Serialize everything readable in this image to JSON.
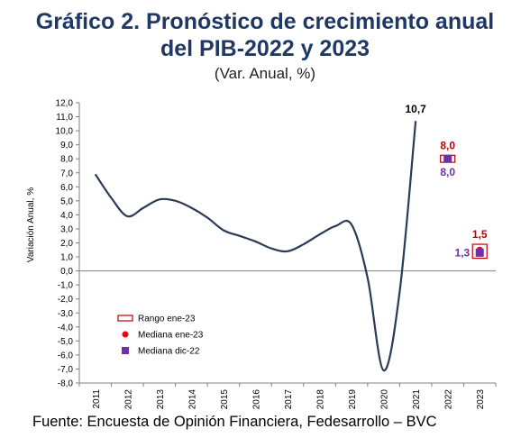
{
  "header": {
    "title_line1": "Gráfico 2. Pronóstico de crecimiento anual",
    "title_line2": "del PIB-2022 y 2023",
    "subtitle": "(Var. Anual, %)"
  },
  "footer": {
    "source": "Fuente: Encuesta de Opinión Financiera, Fedesarrollo – BVC"
  },
  "colors": {
    "line": "#2b3a56",
    "range": "#c00000",
    "median_ene23": "#e30613",
    "median_dic22": "#7030a0",
    "label_red": "#c00000",
    "label_purple": "#7030a0",
    "label_dark": "#000000"
  },
  "chart_data": {
    "type": "line",
    "ylabel": "Variación Anual, %",
    "ylim": [
      -8,
      12
    ],
    "yticks": [
      "12,0",
      "11,0",
      "10,0",
      "9,0",
      "8,0",
      "7,0",
      "6,0",
      "5,0",
      "4,0",
      "3,0",
      "2,0",
      "1,0",
      "0,0",
      "-1,0",
      "-2,0",
      "-3,0",
      "-4,0",
      "-5,0",
      "-6,0",
      "-7,0",
      "-8,0"
    ],
    "categories": [
      "2011",
      "2012",
      "2013",
      "2014",
      "2015",
      "2016",
      "2017",
      "2018",
      "2019",
      "2020",
      "2021",
      "2022",
      "2023"
    ],
    "series": [
      {
        "x": [
          2011,
          2011.5,
          2012,
          2012.5,
          2013,
          2013.5,
          2014,
          2014.5,
          2015,
          2015.5,
          2016,
          2016.5,
          2017,
          2017.5,
          2018,
          2018.5,
          2019,
          2019.5,
          2020,
          2020.5,
          2021
        ],
        "values": [
          6.9,
          5.2,
          3.9,
          4.5,
          5.1,
          5.0,
          4.5,
          3.8,
          2.9,
          2.5,
          2.1,
          1.6,
          1.4,
          1.9,
          2.6,
          3.2,
          3.3,
          -0.5,
          -7.1,
          -1.5,
          10.7
        ]
      }
    ],
    "forecasts": [
      {
        "year": "2022",
        "range_low": 7.75,
        "range_high": 8.25,
        "median_ene23": 8.0,
        "median_dic22": 8.0,
        "label_top": "8,0",
        "label_bottom": "8,0"
      },
      {
        "year": "2023",
        "range_low": 0.9,
        "range_high": 1.9,
        "median_ene23": 1.5,
        "median_dic22": 1.3,
        "label_top": "1,5",
        "label_left": "1,3"
      }
    ],
    "annotation_2021": "10,7",
    "legend": {
      "position": "bottom-left",
      "items": [
        {
          "key": "range",
          "label": "Rango ene-23"
        },
        {
          "key": "median_ene23",
          "label": "Mediana ene-23"
        },
        {
          "key": "median_dic22",
          "label": "Mediana dic-22"
        }
      ]
    }
  }
}
